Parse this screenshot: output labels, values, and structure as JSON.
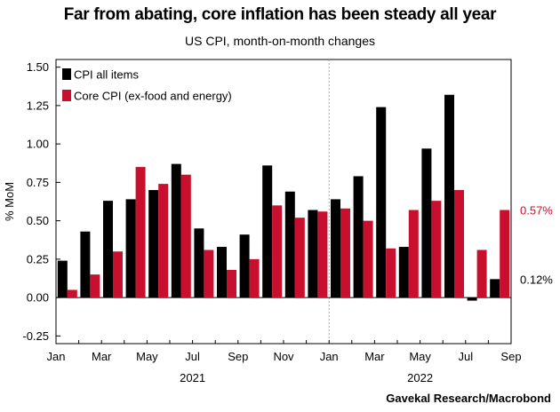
{
  "chart_data": {
    "type": "bar",
    "title": "Far from abating, core inflation has been steady all year",
    "subtitle": "US CPI, month-on-month changes",
    "ylabel": "% MoM",
    "source": "Gavekal Research/Macrobond",
    "ylim": [
      -0.3,
      1.55
    ],
    "yticks": [
      "1.50",
      "1.25",
      "1.00",
      "0.75",
      "0.50",
      "0.25",
      "0.00",
      "-0.25"
    ],
    "ytick_values": [
      1.5,
      1.25,
      1.0,
      0.75,
      0.5,
      0.25,
      0.0,
      -0.25
    ],
    "categories": [
      "Jan 2021",
      "Feb 2021",
      "Mar 2021",
      "Apr 2021",
      "May 2021",
      "Jun 2021",
      "Jul 2021",
      "Aug 2021",
      "Sep 2021",
      "Oct 2021",
      "Nov 2021",
      "Dec 2021",
      "Jan 2022",
      "Feb 2022",
      "Mar 2022",
      "Apr 2022",
      "May 2022",
      "Jun 2022",
      "Jul 2022",
      "Aug 2022"
    ],
    "xtick_labels": [
      "Jan",
      "Mar",
      "May",
      "Jul",
      "Sep",
      "Nov",
      "Jan",
      "Mar",
      "May",
      "Jul",
      "Sep"
    ],
    "year_labels": [
      "2021",
      "2022"
    ],
    "series": [
      {
        "name": "CPI all items",
        "color": "#000000",
        "values": [
          0.24,
          0.43,
          0.63,
          0.64,
          0.7,
          0.87,
          0.45,
          0.33,
          0.41,
          0.86,
          0.69,
          0.57,
          0.64,
          0.79,
          1.24,
          0.33,
          0.97,
          1.32,
          -0.02,
          0.12
        ]
      },
      {
        "name": "Core CPI (ex-food and energy)",
        "color": "#c8102e",
        "values": [
          0.05,
          0.15,
          0.3,
          0.85,
          0.74,
          0.8,
          0.31,
          0.18,
          0.25,
          0.6,
          0.52,
          0.56,
          0.58,
          0.5,
          0.32,
          0.57,
          0.63,
          0.7,
          0.31,
          0.57
        ]
      }
    ],
    "annotations": [
      {
        "text": "0.57%",
        "color": "#c8102e",
        "value": 0.57
      },
      {
        "text": "0.12%",
        "color": "#000000",
        "value": 0.12
      }
    ],
    "legend": "top-left",
    "grid": false
  }
}
